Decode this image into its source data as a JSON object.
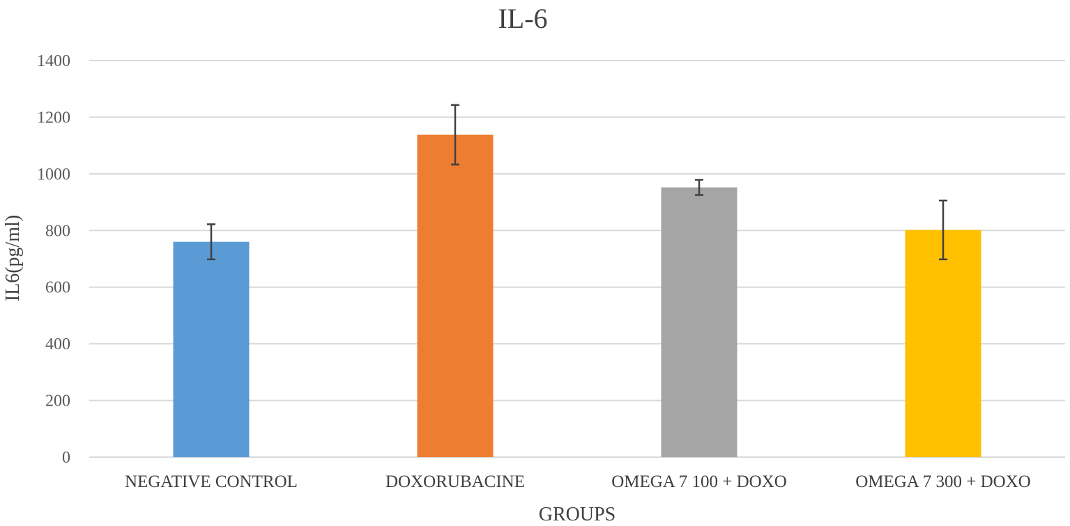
{
  "chart_data": {
    "type": "bar",
    "title": "IL-6",
    "xlabel": "GROUPS",
    "ylabel": "IL6(pg/ml)",
    "ylim": [
      0,
      1400
    ],
    "yticks": [
      0,
      200,
      400,
      600,
      800,
      1000,
      1200,
      1400
    ],
    "grid": true,
    "legend": "none",
    "categories": [
      "NEGATIVE CONTROL",
      "DOXORUBACINE",
      "OMEGA 7 100 + DOXO",
      "OMEGA 7 300 + DOXO"
    ],
    "values": [
      760,
      1138,
      952,
      802
    ],
    "errors": [
      62,
      105,
      27,
      104
    ],
    "colors": [
      "#5B9BD5",
      "#ED7D31",
      "#A5A5A5",
      "#FFC000"
    ]
  }
}
